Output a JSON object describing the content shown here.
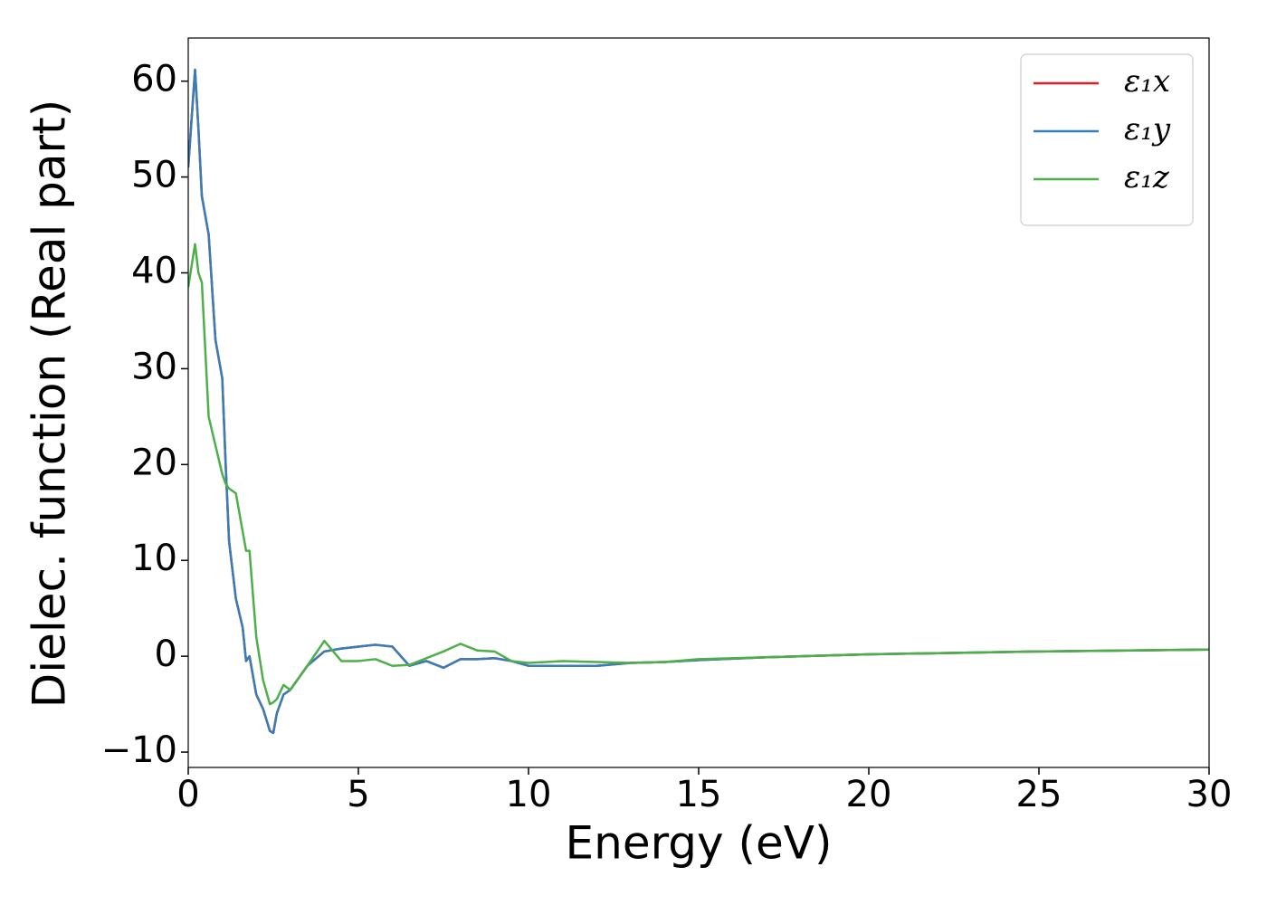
{
  "chart_data": {
    "type": "line",
    "xlabel": "Energy (eV)",
    "ylabel": "Dielec. function (Real part)",
    "x": [
      0,
      0.2,
      0.3,
      0.4,
      0.6,
      0.8,
      1.0,
      1.1,
      1.2,
      1.4,
      1.6,
      1.7,
      1.8,
      2.0,
      2.2,
      2.4,
      2.5,
      2.6,
      2.8,
      3.0,
      3.5,
      4.0,
      4.5,
      5.0,
      5.5,
      6.0,
      6.5,
      7.0,
      7.5,
      8.0,
      8.5,
      9.0,
      9.5,
      10,
      11,
      12,
      13,
      14,
      15,
      17,
      20,
      25,
      30
    ],
    "series": [
      {
        "name": "ε₁x",
        "color": "#e41a1c",
        "values": [
          51,
          61.2,
          55,
          48,
          44,
          33,
          29,
          20,
          12,
          6,
          3,
          -0.5,
          0,
          -4,
          -5.5,
          -7.8,
          -8,
          -6,
          -4,
          -3.5,
          -1,
          0.5,
          0.8,
          1,
          1.2,
          1,
          -1,
          -0.5,
          -1.2,
          -0.3,
          -0.3,
          -0.2,
          -0.5,
          -1,
          -1,
          -1,
          -0.7,
          -0.6,
          -0.4,
          -0.1,
          0.2,
          0.5,
          0.7
        ]
      },
      {
        "name": "ε₁y",
        "color": "#377eb8",
        "values": [
          51,
          61.2,
          55,
          48,
          44,
          33,
          29,
          20,
          12,
          6,
          3,
          -0.5,
          0,
          -4,
          -5.5,
          -7.8,
          -8,
          -6,
          -4,
          -3.5,
          -1,
          0.5,
          0.8,
          1,
          1.2,
          1,
          -1,
          -0.5,
          -1.2,
          -0.3,
          -0.3,
          -0.2,
          -0.5,
          -1,
          -1,
          -1,
          -0.7,
          -0.6,
          -0.4,
          -0.1,
          0.2,
          0.5,
          0.7
        ]
      },
      {
        "name": "ε₁z",
        "color": "#4daf4a",
        "values": [
          38.5,
          43,
          40,
          39,
          25,
          22,
          19,
          18,
          17.5,
          17,
          13,
          11,
          11,
          2,
          -2.5,
          -5,
          -4.8,
          -4.5,
          -3,
          -3.5,
          -1,
          1.6,
          -0.5,
          -0.5,
          -0.3,
          -1,
          -0.9,
          -0.2,
          0.5,
          1.3,
          0.6,
          0.5,
          -0.5,
          -0.7,
          -0.5,
          -0.6,
          -0.7,
          -0.6,
          -0.3,
          -0.1,
          0.2,
          0.5,
          0.7
        ]
      }
    ],
    "xlim": [
      0,
      30
    ],
    "xticks": [
      0,
      5,
      10,
      15,
      20,
      25,
      30
    ],
    "ylim": [
      -11.6,
      64.5
    ],
    "yticks": [
      {
        "value": -10,
        "label": "−10"
      },
      0,
      10,
      20,
      30,
      40,
      50,
      60
    ],
    "legend_loc": "upper right",
    "grid": false
  }
}
